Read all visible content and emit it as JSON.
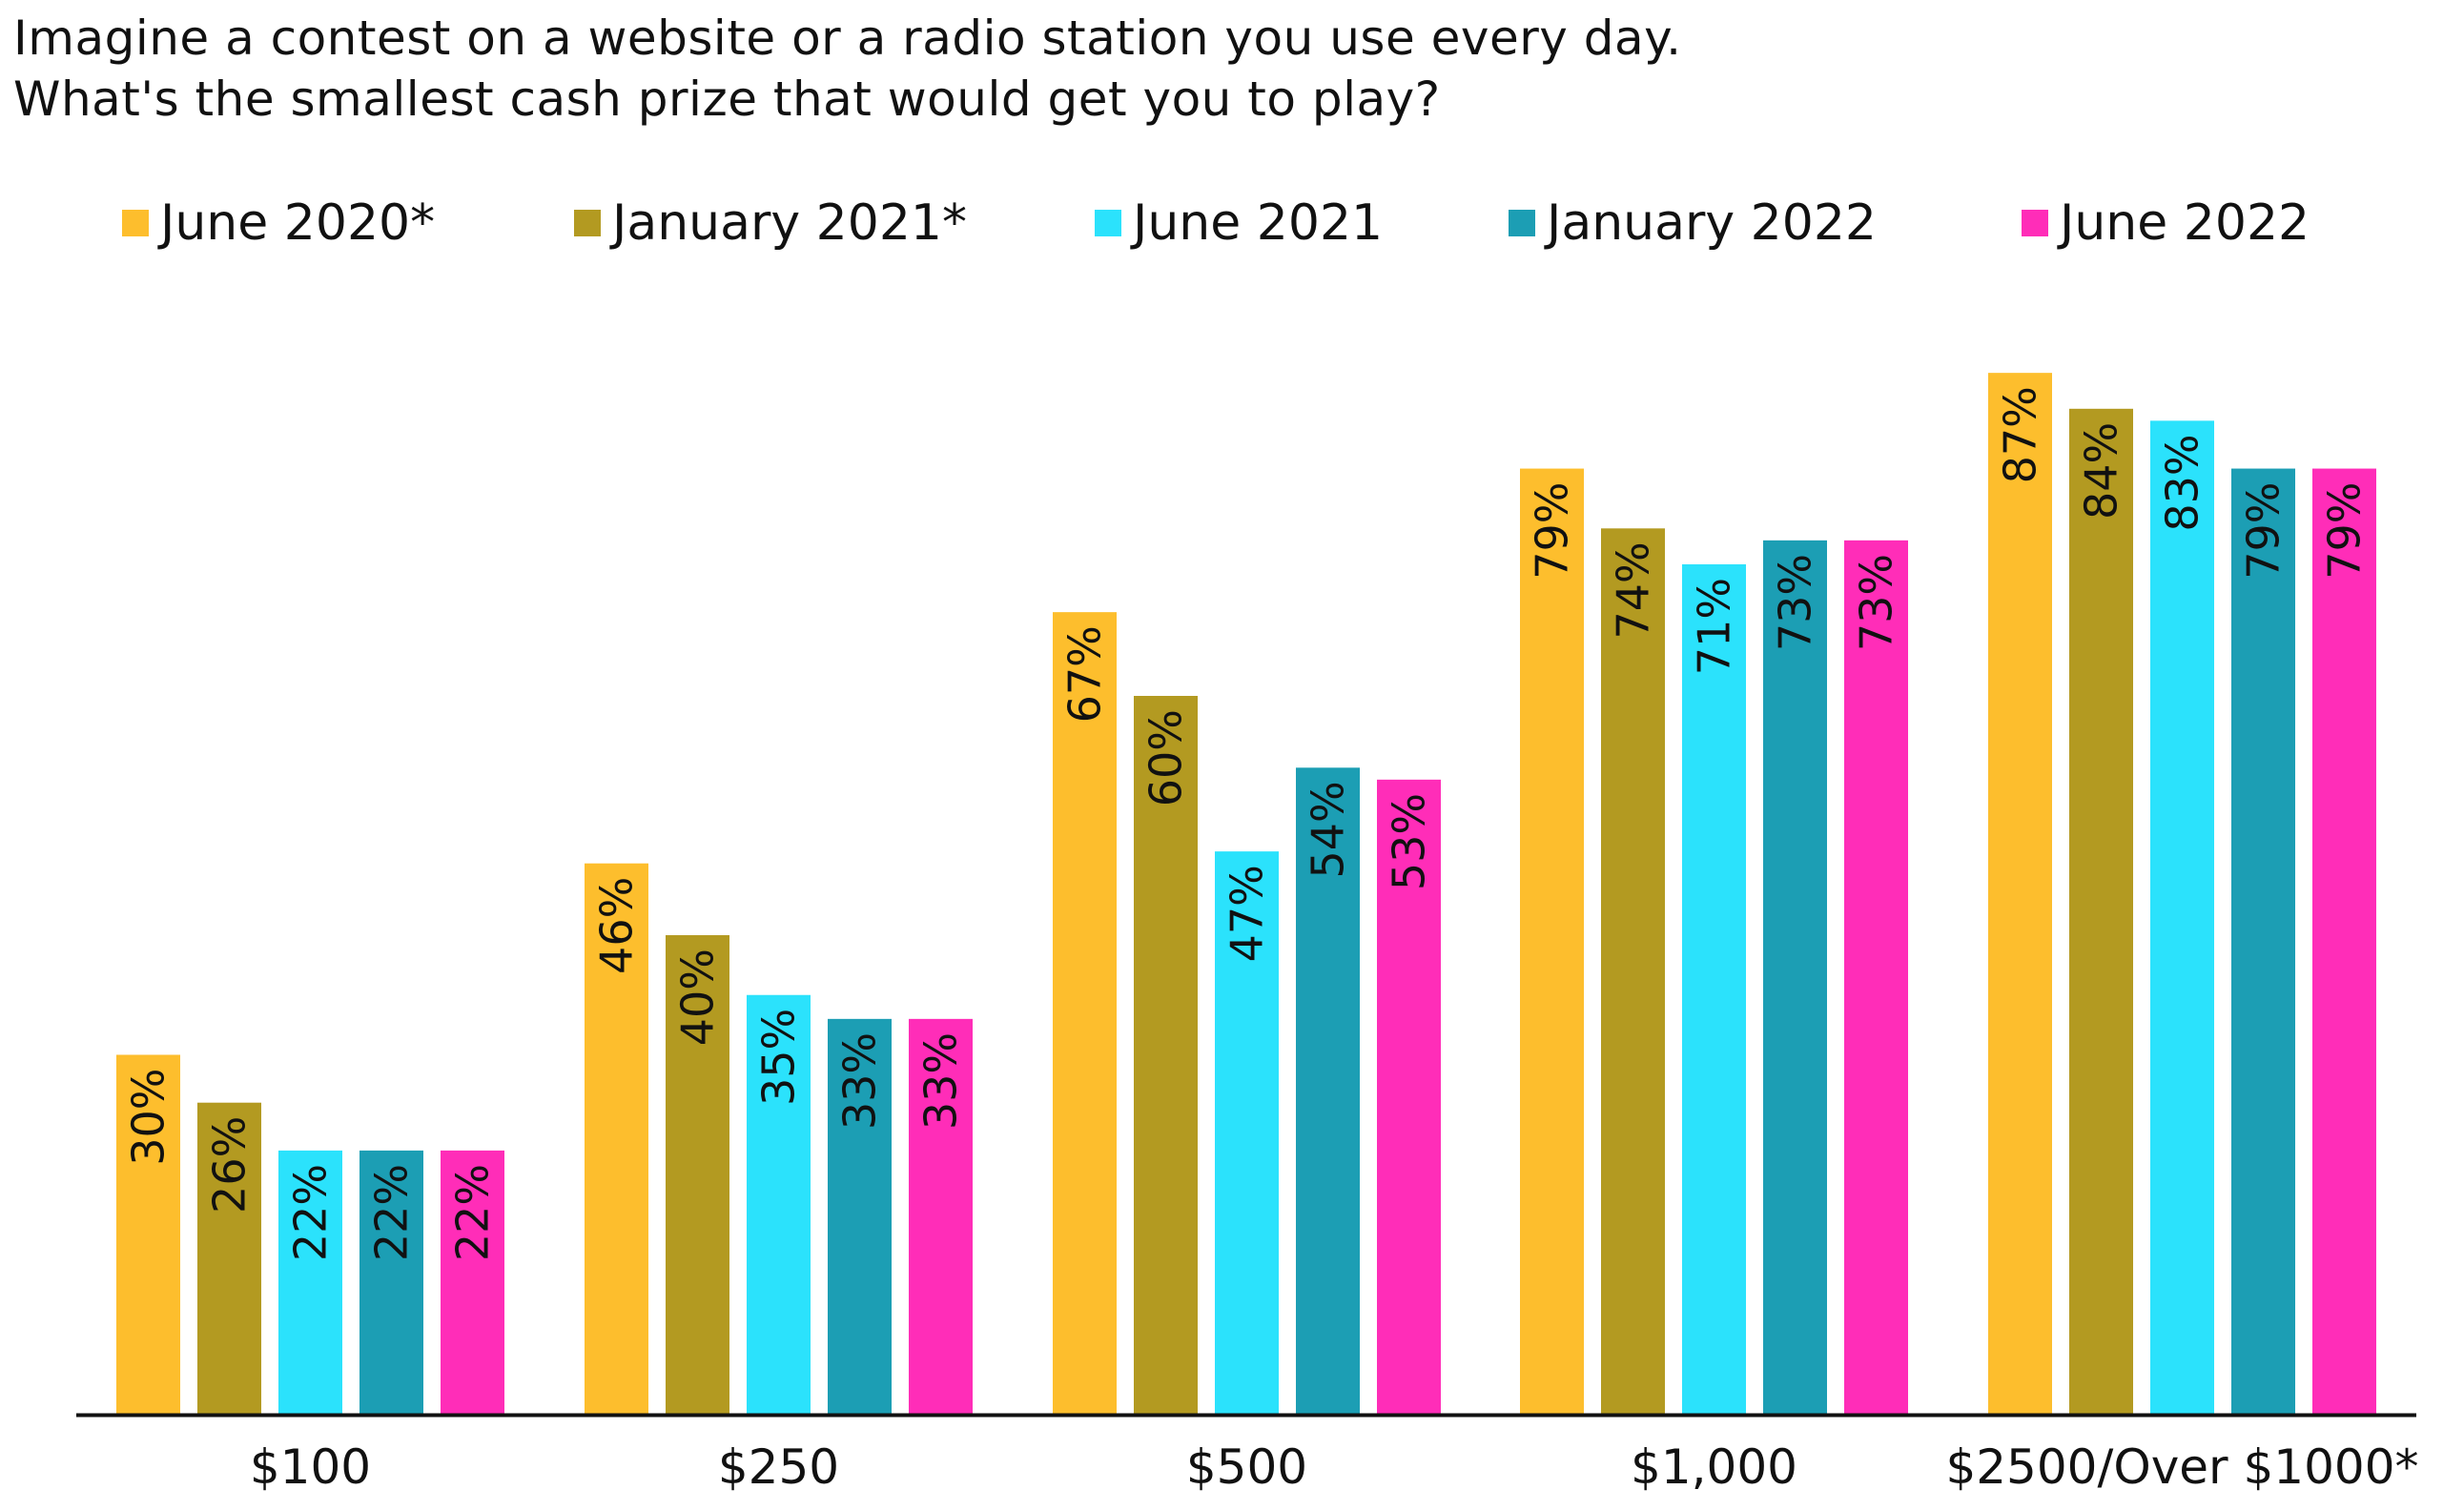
{
  "title_lines": [
    "Imagine a contest on a website or a radio station you use every day.",
    "What's the smallest cash prize that would get you to play?"
  ],
  "chart_data": {
    "type": "bar",
    "title": "Imagine a contest on a website or a radio station you use every day. What's the smallest cash prize that would get you to play?",
    "xlabel": "",
    "ylabel": "",
    "categories": [
      "$100",
      "$250",
      "$500",
      "$1,000",
      "$2500/Over $1000*"
    ],
    "series": [
      {
        "name": "June 2020*",
        "color": "#FDBE2D",
        "values": [
          30,
          46,
          67,
          79,
          87
        ]
      },
      {
        "name": "January 2021*",
        "color": "#B39A21",
        "values": [
          26,
          40,
          60,
          74,
          84
        ]
      },
      {
        "name": "June 2021",
        "color": "#2BE2FC",
        "values": [
          22,
          35,
          47,
          71,
          83
        ]
      },
      {
        "name": "January 2022",
        "color": "#1C9EB4",
        "values": [
          22,
          33,
          54,
          73,
          79
        ]
      },
      {
        "name": "June 2022",
        "color": "#FF2DB8",
        "values": [
          22,
          33,
          53,
          73,
          79
        ]
      }
    ],
    "value_suffix": "%",
    "ylim": [
      0,
      100
    ],
    "grid": false,
    "legend_position": "top"
  }
}
